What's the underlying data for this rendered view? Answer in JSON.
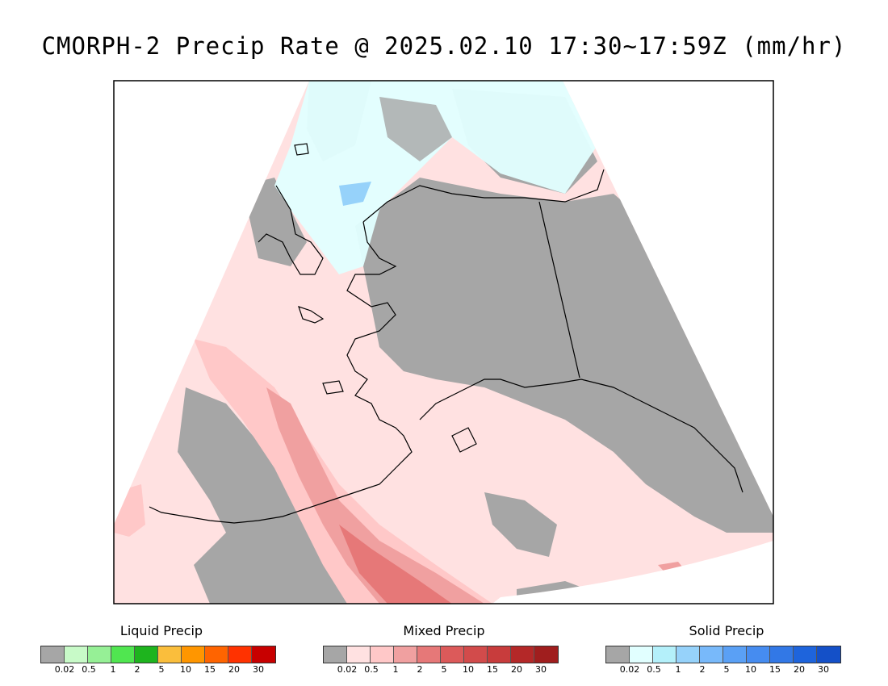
{
  "title": "CMORPH-2 Precip Rate @ 2025.02.10 17:30~17:59Z (mm/hr)",
  "legends": [
    {
      "title": "Liquid Precip",
      "colors": [
        "#a6a6a6",
        "#c8fac8",
        "#96f096",
        "#50e650",
        "#1eb41e",
        "#fabe3c",
        "#ff9600",
        "#ff6400",
        "#ff3200",
        "#c80000"
      ],
      "ticks": [
        "0.02",
        "0.5",
        "1",
        "2",
        "5",
        "10",
        "15",
        "20",
        "30"
      ]
    },
    {
      "title": "Mixed Precip",
      "colors": [
        "#a6a6a6",
        "#ffe1e1",
        "#ffc8c8",
        "#f0a0a0",
        "#e67878",
        "#dc5a5a",
        "#d24b4b",
        "#c83c3c",
        "#b42828",
        "#a01e1e"
      ],
      "ticks": [
        "0.02",
        "0.5",
        "1",
        "2",
        "5",
        "10",
        "15",
        "20",
        "30"
      ]
    },
    {
      "title": "Solid Precip",
      "colors": [
        "#a6a6a6",
        "#e1ffff",
        "#b4f0fa",
        "#96d2fa",
        "#78b9fa",
        "#5aa0f5",
        "#468cf0",
        "#3278e6",
        "#1e64dc",
        "#1450c8"
      ],
      "ticks": [
        "0.02",
        "0.5",
        "1",
        "2",
        "5",
        "10",
        "15",
        "20",
        "30"
      ]
    }
  ]
}
